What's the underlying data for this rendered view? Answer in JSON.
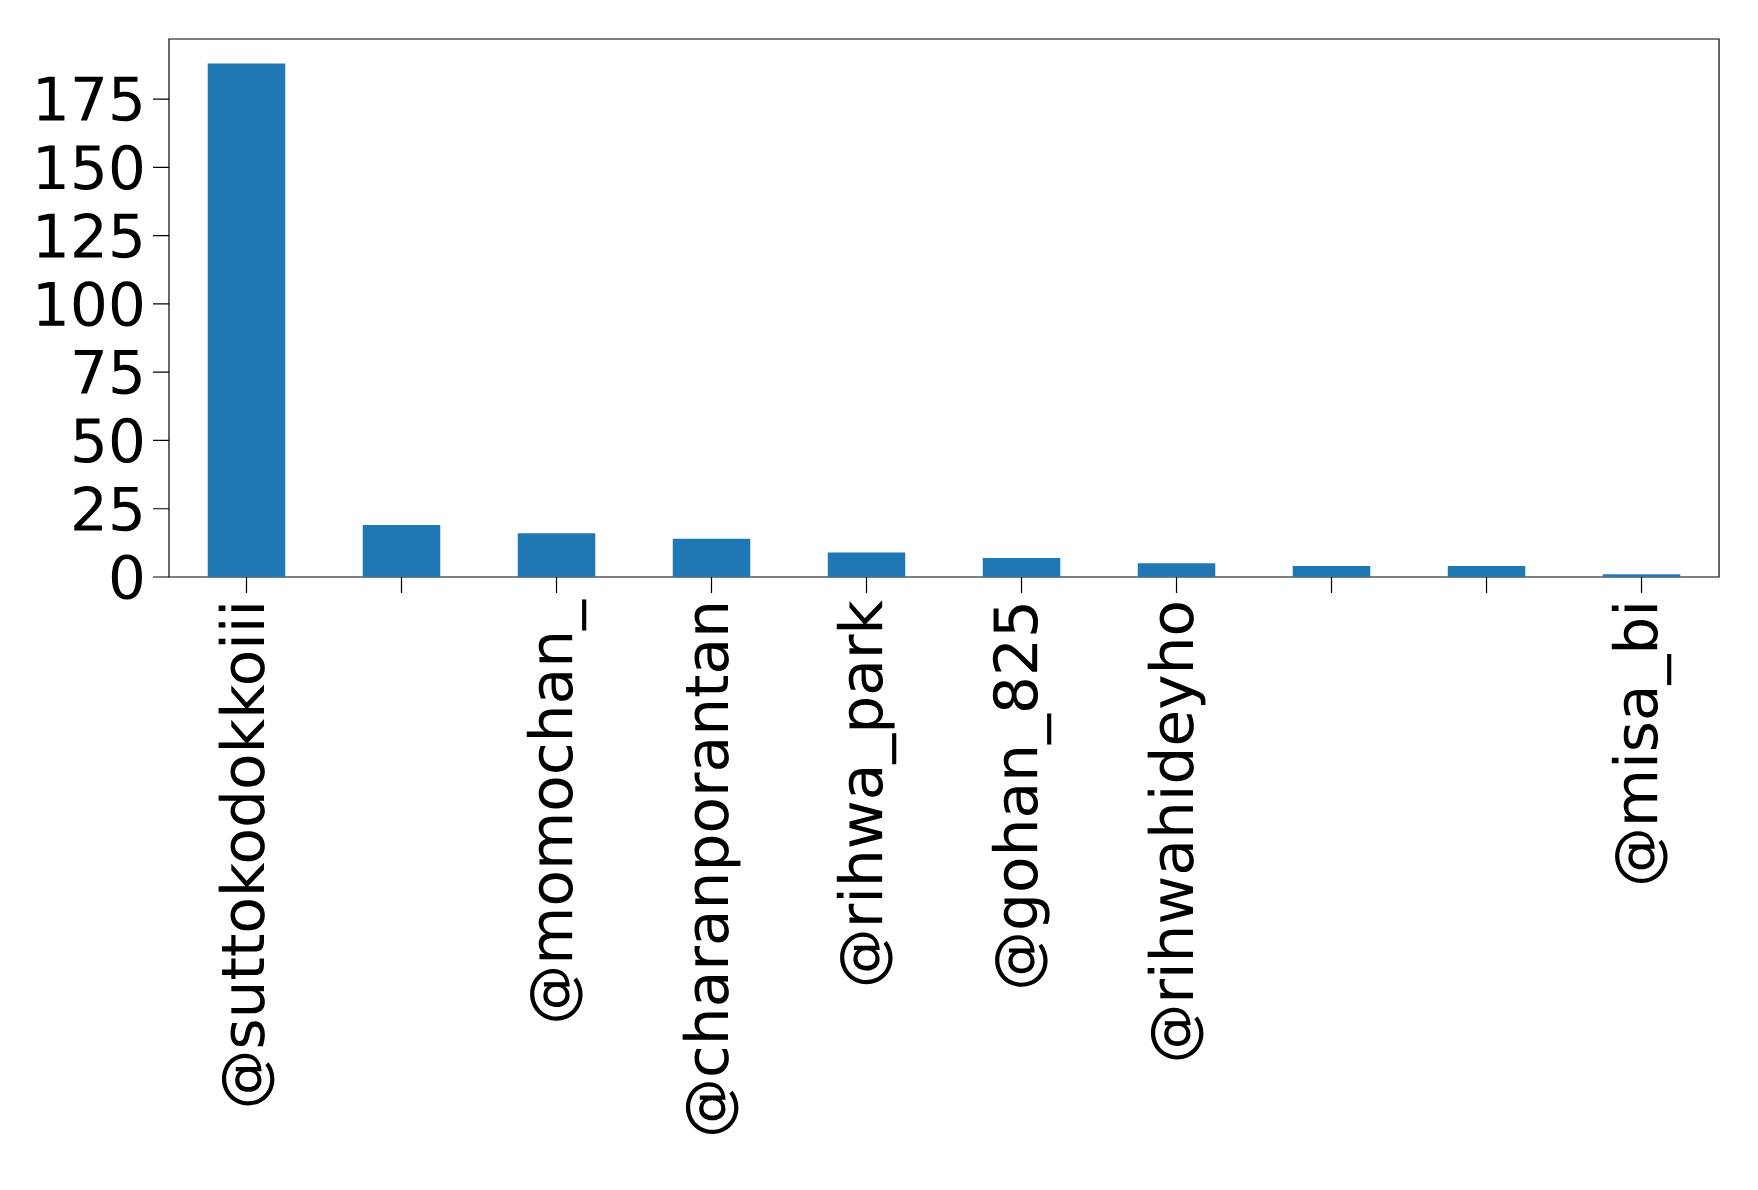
{
  "chart_data": {
    "type": "bar",
    "categories": [
      "@suttokodokkoiii",
      null,
      "@momochan_",
      "@charanporantan",
      "@rihwa_park",
      "@gohan_825",
      "@rihwahideyho",
      null,
      null,
      "@misa_bi"
    ],
    "values": [
      188,
      19,
      16,
      14,
      9,
      7,
      5,
      4,
      4,
      1
    ],
    "color": "#1f77b4",
    "ylim": [
      0,
      197
    ],
    "yticks": [
      0,
      25,
      50,
      75,
      100,
      125,
      150,
      175
    ],
    "grid": false
  }
}
